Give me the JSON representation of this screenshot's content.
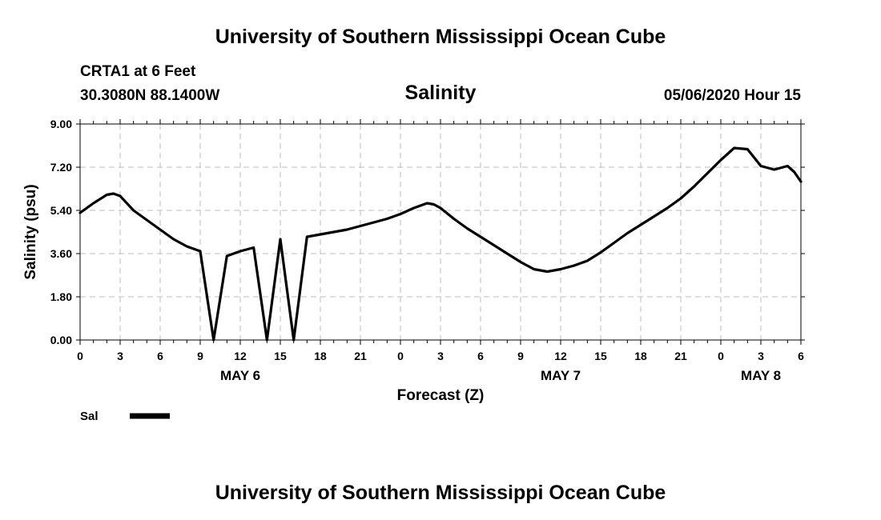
{
  "header": {
    "title_top": "University of Southern Mississippi Ocean Cube",
    "station": "CRTA1 at 6 Feet",
    "coords": "30.3080N 88.1400W",
    "variable": "Salinity",
    "datetime": "05/06/2020 Hour 15",
    "title_bottom": "University of Southern Mississippi Ocean Cube"
  },
  "chart_data": {
    "type": "line",
    "ylabel": "Salinity (psu)",
    "xlabel": "Forecast (Z)",
    "ylim": [
      0,
      9
    ],
    "xlim": [
      0,
      54
    ],
    "grid": true,
    "y_ticks": [
      "0.00",
      "1.80",
      "3.60",
      "5.40",
      "7.20",
      "9.00"
    ],
    "x_tick_labels": [
      "0",
      "3",
      "6",
      "9",
      "12",
      "15",
      "18",
      "21",
      "0",
      "3",
      "6",
      "9",
      "12",
      "15",
      "18",
      "21",
      "0",
      "3",
      "6"
    ],
    "day_labels": [
      {
        "label": "MAY 6",
        "hour": 12
      },
      {
        "label": "MAY 7",
        "hour": 36
      },
      {
        "label": "MAY 8",
        "hour": 51
      }
    ],
    "legend_position": "bottom-left",
    "series": [
      {
        "name": "Sal",
        "color": "#000000",
        "x": [
          0,
          1,
          2,
          2.5,
          3,
          4,
          5,
          6,
          7,
          8,
          9,
          10,
          11,
          12,
          13,
          14,
          15,
          16,
          17,
          18,
          19,
          20,
          21,
          22,
          23,
          24,
          25,
          26,
          26.5,
          27,
          28,
          29,
          30,
          31,
          32,
          33,
          34,
          35,
          36,
          37,
          38,
          39,
          40,
          41,
          42,
          43,
          44,
          45,
          46,
          47,
          48,
          49,
          50,
          51,
          52,
          53,
          53.5,
          54
        ],
        "y": [
          5.3,
          5.7,
          6.05,
          6.1,
          6.0,
          5.4,
          5.0,
          4.6,
          4.2,
          3.9,
          3.7,
          0.0,
          3.5,
          3.7,
          3.85,
          0.0,
          4.2,
          0.0,
          4.3,
          4.4,
          4.5,
          4.6,
          4.75,
          4.9,
          5.05,
          5.25,
          5.5,
          5.7,
          5.65,
          5.5,
          5.05,
          4.65,
          4.3,
          3.95,
          3.6,
          3.25,
          2.95,
          2.85,
          2.95,
          3.1,
          3.3,
          3.65,
          4.05,
          4.45,
          4.8,
          5.15,
          5.5,
          5.9,
          6.4,
          6.95,
          7.5,
          8.0,
          7.95,
          7.25,
          7.1,
          7.25,
          7.0,
          6.6
        ]
      }
    ]
  }
}
